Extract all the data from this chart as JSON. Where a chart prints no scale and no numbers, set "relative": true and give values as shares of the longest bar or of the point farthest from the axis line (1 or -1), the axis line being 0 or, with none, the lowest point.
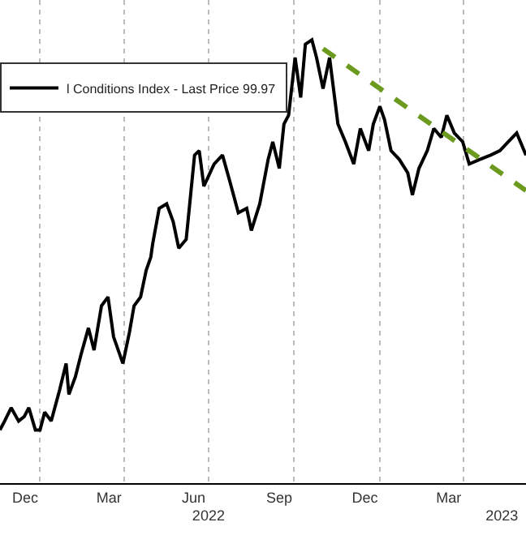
{
  "chart_data": {
    "type": "line",
    "relative": true,
    "legend": "top left",
    "grid": "x",
    "line_style": "solid",
    "marker": "none",
    "xlim": [
      "2021-11-19",
      "2023-06-07"
    ],
    "xticks": [
      {
        "value": "2021-12-16",
        "label": "Dec"
      },
      {
        "value": "2022-01-01",
        "label": null
      },
      {
        "value": "2022-03-16",
        "label": "Mar"
      },
      {
        "value": "2022-04-01",
        "label": null
      },
      {
        "value": "2022-06-15",
        "label": "Jun"
      },
      {
        "value": "2022-07-01",
        "label": null
      },
      {
        "value": "2022-09-15",
        "label": "Sep"
      },
      {
        "value": "2022-10-01",
        "label": null
      },
      {
        "value": "2022-12-16",
        "label": "Dec"
      },
      {
        "value": "2023-01-01",
        "label": null
      },
      {
        "value": "2023-03-16",
        "label": "Mar"
      },
      {
        "value": "2023-04-01",
        "label": null
      }
    ],
    "x2lim": [
      "2021-11-19",
      "2023-06-07"
    ],
    "x2ticks": [
      {
        "value": "2022-07-01",
        "label": "2022"
      },
      {
        "value": "2023-05-12",
        "label": "2023"
      }
    ],
    "series": [
      {
        "name": "l Conditions Index - Last Price 99.97",
        "color": "#000000",
        "x": [
          "2021-11-19",
          "2021-11-24",
          "2021-12-01",
          "2021-12-09",
          "2021-12-15",
          "2021-12-20",
          "2021-12-27",
          "2022-01-01",
          "2022-01-06",
          "2022-01-13",
          "2022-01-22",
          "2022-01-29",
          "2022-02-01",
          "2022-02-08",
          "2022-02-14",
          "2022-02-22",
          "2022-02-28",
          "2022-03-08",
          "2022-03-15",
          "2022-03-21",
          "2022-03-31",
          "2022-04-07",
          "2022-04-12",
          "2022-04-19",
          "2022-04-25",
          "2022-04-30",
          "2022-05-02",
          "2022-05-09",
          "2022-05-17",
          "2022-05-24",
          "2022-05-30",
          "2022-06-07",
          "2022-06-16",
          "2022-06-21",
          "2022-06-26",
          "2022-07-07",
          "2022-07-16",
          "2022-07-24",
          "2022-08-02",
          "2022-08-11",
          "2022-08-16",
          "2022-08-25",
          "2022-09-03",
          "2022-09-08",
          "2022-09-15",
          "2022-09-20",
          "2022-09-25",
          "2022-10-02",
          "2022-10-08",
          "2022-10-13",
          "2022-10-20",
          "2022-10-25",
          "2022-11-01",
          "2022-11-08",
          "2022-11-17",
          "2022-11-25",
          "2022-12-04",
          "2022-12-11",
          "2022-12-20",
          "2022-12-25",
          "2023-01-01",
          "2023-01-06",
          "2023-01-13",
          "2023-01-22",
          "2023-01-31",
          "2023-02-05",
          "2023-02-12",
          "2023-02-21",
          "2023-02-28",
          "2023-03-08",
          "2023-03-14",
          "2023-03-22",
          "2023-03-31",
          "2023-04-07",
          "2023-04-18",
          "2023-04-30",
          "2023-05-10",
          "2023-05-19",
          "2023-05-28",
          "2023-06-07"
        ],
        "values": [
          0.12,
          0.14,
          0.17,
          0.14,
          0.15,
          0.17,
          0.12,
          0.12,
          0.16,
          0.14,
          0.21,
          0.27,
          0.2,
          0.24,
          0.29,
          0.35,
          0.3,
          0.4,
          0.42,
          0.33,
          0.27,
          0.34,
          0.4,
          0.42,
          0.48,
          0.51,
          0.54,
          0.62,
          0.63,
          0.59,
          0.53,
          0.55,
          0.74,
          0.75,
          0.67,
          0.72,
          0.74,
          0.68,
          0.61,
          0.62,
          0.57,
          0.63,
          0.73,
          0.77,
          0.71,
          0.81,
          0.83,
          0.96,
          0.87,
          0.99,
          1.0,
          0.96,
          0.89,
          0.96,
          0.81,
          0.77,
          0.72,
          0.8,
          0.75,
          0.81,
          0.85,
          0.82,
          0.75,
          0.73,
          0.7,
          0.65,
          0.71,
          0.75,
          0.8,
          0.78,
          0.83,
          0.79,
          0.77,
          0.72,
          0.73,
          0.74,
          0.75,
          0.77,
          0.79,
          0.74
        ]
      },
      {
        "type": "line",
        "color": "#6b9a1f",
        "line_style": "dashed",
        "x": [
          "2022-11-01",
          "2023-06-07"
        ],
        "values": [
          0.98,
          0.66
        ]
      }
    ]
  }
}
